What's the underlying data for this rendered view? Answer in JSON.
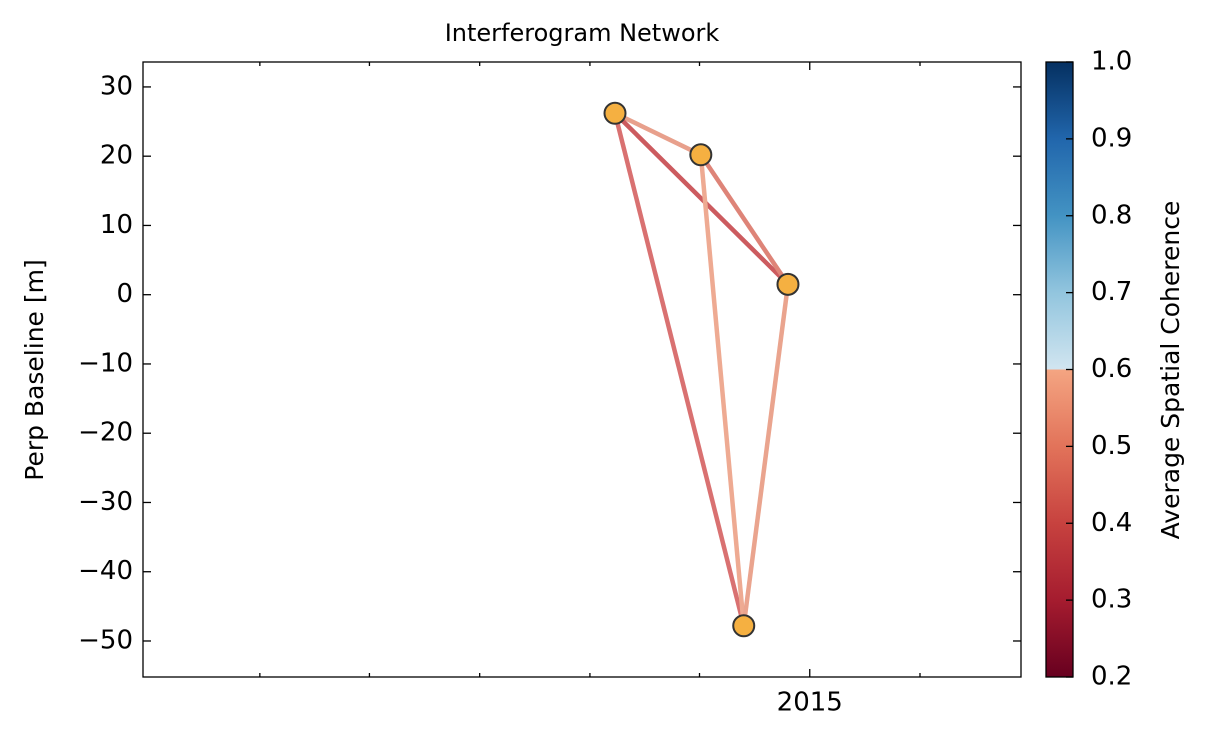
{
  "chart_data": {
    "type": "network",
    "title": "Interferogram Network",
    "y_label": "Perp Baseline [m]",
    "x": [
      2014.705,
      2014.835,
      2014.9,
      2014.967
    ],
    "values": [
      26.2,
      20.2,
      -47.8,
      1.5
    ],
    "marker_color": "#f5b041",
    "edges": [
      {
        "from": 0,
        "to": 1,
        "coherence": 0.53,
        "color": "#e8a08c"
      },
      {
        "from": 0,
        "to": 2,
        "coherence": 0.46,
        "color": "#d97171"
      },
      {
        "from": 0,
        "to": 3,
        "coherence": 0.43,
        "color": "#cc5b5f"
      },
      {
        "from": 1,
        "to": 2,
        "coherence": 0.56,
        "color": "#eeaa92"
      },
      {
        "from": 1,
        "to": 3,
        "coherence": 0.49,
        "color": "#de8478"
      },
      {
        "from": 2,
        "to": 3,
        "coherence": 0.56,
        "color": "#eaa48e"
      }
    ],
    "xlim": [
      2013.99,
      2015.32
    ],
    "xticks": [
      {
        "value": 2015,
        "label": "2015"
      }
    ],
    "xminorticks": [
      2014.167,
      2014.333,
      2014.5,
      2014.667,
      2014.833,
      2015.167
    ],
    "ylim": [
      -55.2,
      33.6
    ],
    "yticks": [
      {
        "value": -50,
        "label": "−50"
      },
      {
        "value": -40,
        "label": "−40"
      },
      {
        "value": -30,
        "label": "−30"
      },
      {
        "value": -20,
        "label": "−20"
      },
      {
        "value": -10,
        "label": "−10"
      },
      0,
      10,
      20,
      30
    ],
    "colorbar": {
      "label": "Average Spatial Coherence",
      "clim": [
        0.2,
        1.0
      ],
      "ticks": [
        0.2,
        0.3,
        0.4,
        0.5,
        0.6,
        0.7,
        0.8,
        0.9,
        {
          "value": 1.0,
          "label": "1.0"
        }
      ],
      "colors": [
        [
          0.2,
          "#67001f"
        ],
        [
          0.3,
          "#a51c2f"
        ],
        [
          0.4,
          "#c7423f"
        ],
        [
          0.5,
          "#e2735a"
        ],
        [
          0.6,
          "#f4a582"
        ],
        [
          0.6,
          "#d1e5f0"
        ],
        [
          0.7,
          "#92c5de"
        ],
        [
          0.8,
          "#4393c3"
        ],
        [
          0.9,
          "#2166ac"
        ],
        [
          1.0,
          "#053061"
        ]
      ]
    }
  }
}
